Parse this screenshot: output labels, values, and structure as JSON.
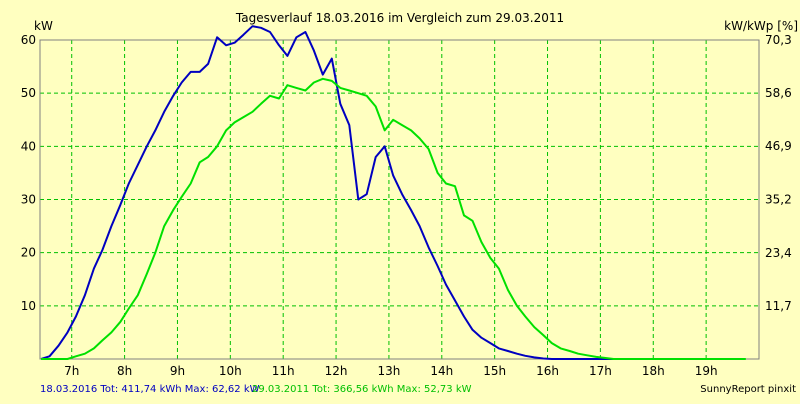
{
  "chart_data": {
    "type": "line",
    "title": "Tagesverlauf 18.03.2016 im Vergleich zum 29.03.2011",
    "ylabel_left": "kW",
    "ylabel_right": "kW/kWp [%]",
    "x_unit": "h",
    "xlim": [
      6.4,
      20.0
    ],
    "ylim": [
      0,
      60
    ],
    "x_ticks": [
      7,
      8,
      9,
      10,
      11,
      12,
      13,
      14,
      15,
      16,
      17,
      18,
      19
    ],
    "x_tick_labels": [
      "7h",
      "8h",
      "9h",
      "10h",
      "11h",
      "12h",
      "13h",
      "14h",
      "15h",
      "16h",
      "17h",
      "18h",
      "19h"
    ],
    "y_ticks": [
      10,
      20,
      30,
      40,
      50,
      60
    ],
    "y_tick_labels": [
      "10",
      "20",
      "30",
      "40",
      "50",
      "60"
    ],
    "y2_ticks": [
      11.7,
      23.4,
      35.2,
      46.9,
      58.6,
      70.3
    ],
    "y2_tick_labels": [
      "11,7",
      "23,4",
      "35,2",
      "46,9",
      "58,6",
      "70,3"
    ],
    "y2_max": 70.3,
    "grid": true,
    "series": [
      {
        "name": "18.03.2016",
        "color": "#0000c0",
        "x": [
          6.42,
          6.58,
          6.75,
          6.92,
          7.08,
          7.25,
          7.42,
          7.58,
          7.75,
          7.92,
          8.08,
          8.25,
          8.42,
          8.58,
          8.75,
          8.92,
          9.08,
          9.25,
          9.42,
          9.58,
          9.75,
          9.92,
          10.08,
          10.25,
          10.42,
          10.58,
          10.75,
          10.92,
          11.08,
          11.25,
          11.42,
          11.58,
          11.75,
          11.92,
          12.08,
          12.25,
          12.42,
          12.58,
          12.75,
          12.92,
          13.08,
          13.25,
          13.42,
          13.58,
          13.75,
          13.92,
          14.08,
          14.25,
          14.42,
          14.58,
          14.75,
          14.92,
          15.08,
          15.25,
          15.42,
          15.58,
          15.75,
          15.92,
          16.08,
          16.25,
          16.42,
          16.58,
          16.75,
          16.92,
          17.08,
          17.25,
          17.42,
          17.58,
          17.75,
          17.92,
          18.08,
          18.25,
          18.42,
          18.58,
          18.75,
          18.92,
          19.08,
          19.25
        ],
        "y": [
          0,
          0.5,
          2.5,
          5,
          8,
          12,
          17,
          20.5,
          25,
          29,
          33,
          36.5,
          40,
          43,
          46.5,
          49.5,
          52,
          54,
          54,
          55.5,
          60.5,
          59,
          59.5,
          61,
          62.6,
          62.3,
          61.5,
          59,
          57,
          60.5,
          61.5,
          58,
          53.5,
          56.5,
          48,
          44,
          30,
          31,
          38,
          40,
          34.5,
          31,
          28,
          25,
          21,
          17.5,
          14,
          11,
          8,
          5.5,
          4,
          3,
          2,
          1.5,
          1,
          0.6,
          0.3,
          0.1,
          0,
          0,
          0,
          0,
          0,
          0,
          0,
          0,
          0,
          0,
          0,
          0,
          0,
          0,
          0,
          0,
          0,
          0,
          0,
          0
        ]
      },
      {
        "name": "29.03.2011",
        "color": "#00e000",
        "x": [
          6.42,
          6.58,
          6.75,
          6.92,
          7.08,
          7.25,
          7.42,
          7.58,
          7.75,
          7.92,
          8.08,
          8.25,
          8.42,
          8.58,
          8.75,
          8.92,
          9.08,
          9.25,
          9.42,
          9.58,
          9.75,
          9.92,
          10.08,
          10.25,
          10.42,
          10.58,
          10.75,
          10.92,
          11.08,
          11.25,
          11.42,
          11.58,
          11.75,
          11.92,
          12.08,
          12.25,
          12.42,
          12.58,
          12.75,
          12.92,
          13.08,
          13.25,
          13.42,
          13.58,
          13.75,
          13.92,
          14.08,
          14.25,
          14.42,
          14.58,
          14.75,
          14.92,
          15.08,
          15.25,
          15.42,
          15.58,
          15.75,
          15.92,
          16.08,
          16.25,
          16.42,
          16.58,
          16.75,
          16.92,
          17.08,
          17.25,
          17.42,
          17.58,
          17.75,
          17.92,
          18.08,
          18.25,
          18.42,
          18.58,
          18.75,
          18.92,
          19.08,
          19.25,
          19.42,
          19.58,
          19.75
        ],
        "y": [
          0,
          0,
          0,
          0,
          0.5,
          1,
          2,
          3.5,
          5,
          7,
          9.5,
          12,
          16,
          20,
          25,
          28,
          30.5,
          33,
          37,
          38,
          40,
          43,
          44.5,
          45.5,
          46.5,
          48,
          49.5,
          49,
          51.5,
          51,
          50.5,
          52,
          52.7,
          52.3,
          51,
          50.5,
          50,
          49.5,
          47.5,
          43,
          45,
          44,
          43,
          41.5,
          39.5,
          35,
          33,
          32.5,
          27,
          26,
          22,
          19,
          17,
          13,
          10,
          8,
          6,
          4.5,
          3,
          2,
          1.5,
          1,
          0.7,
          0.4,
          0.2,
          0,
          0,
          0,
          0,
          0,
          0,
          0,
          0,
          0,
          0,
          0,
          0,
          0,
          0,
          0,
          0
        ]
      }
    ],
    "legend": {
      "placement": "bottom-left",
      "entries": [
        {
          "text": "18.03.2016 Tot: 411,74 kWh Max: 62,62 kW",
          "color": "#0000c0"
        },
        {
          "text": "29.03.2011 Tot: 366,56 kWh Max: 52,73 kW",
          "color": "#00e000"
        }
      ]
    },
    "footer_text": "SunnyReport pinxit"
  },
  "colors": {
    "background": "#ffffc0",
    "grid": "#00c000",
    "axis_text": "#000000"
  }
}
